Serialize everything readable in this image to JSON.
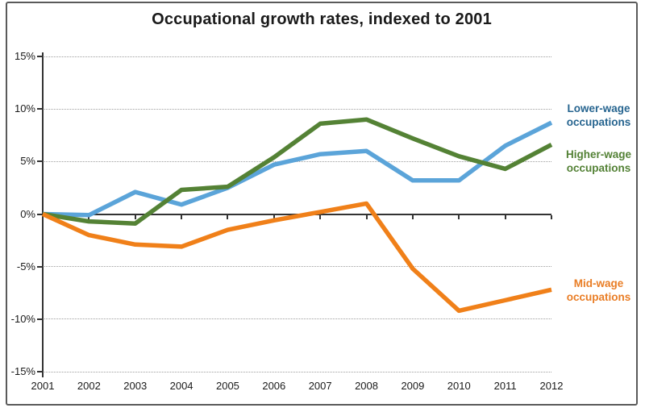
{
  "chart": {
    "title": "Occupational growth rates, indexed to 2001"
  },
  "chart_data": {
    "type": "line",
    "title": "Occupational growth rates, indexed to 2001",
    "x": [
      2001,
      2002,
      2003,
      2004,
      2005,
      2006,
      2007,
      2008,
      2009,
      2010,
      2011,
      2012
    ],
    "x_labels": [
      "2001",
      "2002",
      "2003",
      "2004",
      "2005",
      "2006",
      "2007",
      "2008",
      "2009",
      "2010",
      "2011",
      "2012"
    ],
    "y_ticks": [
      15,
      10,
      5,
      0,
      -5,
      -10,
      -15
    ],
    "y_tick_labels": [
      "15%",
      "10%",
      "5%",
      "0%",
      "-5%",
      "-10%",
      "-15%"
    ],
    "ylim": [
      -15,
      15
    ],
    "grid": "horizontal-dotted",
    "legend_position": "right",
    "xlabel": "",
    "ylabel": "",
    "series": [
      {
        "name": "Lower-wage occupations",
        "color": "#5BA4D9",
        "values": [
          0,
          -0.1,
          2.1,
          0.9,
          2.5,
          4.7,
          5.7,
          6.0,
          3.2,
          3.2,
          6.5,
          8.7
        ]
      },
      {
        "name": "Higher-wage occupations",
        "color": "#548235",
        "values": [
          0,
          -0.7,
          -0.9,
          2.3,
          2.6,
          5.4,
          8.6,
          9.0,
          7.2,
          5.5,
          4.3,
          6.6
        ]
      },
      {
        "name": "Mid-wage occupations",
        "color": "#F08019",
        "values": [
          0,
          -2.0,
          -2.9,
          -3.1,
          -1.5,
          -0.6,
          0.2,
          1.0,
          -5.2,
          -9.2,
          -8.2,
          -7.2
        ]
      }
    ]
  },
  "legend": {
    "items": [
      {
        "line1": "Lower-wage",
        "line2": "occupations",
        "color": "#26648F"
      },
      {
        "line1": "Higher-wage",
        "line2": "occupations",
        "color": "#538135"
      },
      {
        "line1": "Mid-wage",
        "line2": "occupations",
        "color": "#E97D25"
      }
    ]
  },
  "colors": {
    "axis": "#333333",
    "gridline": "#9e9e9e",
    "frame_border": "#5a5a5a",
    "title_text": "#1a1a1a"
  }
}
